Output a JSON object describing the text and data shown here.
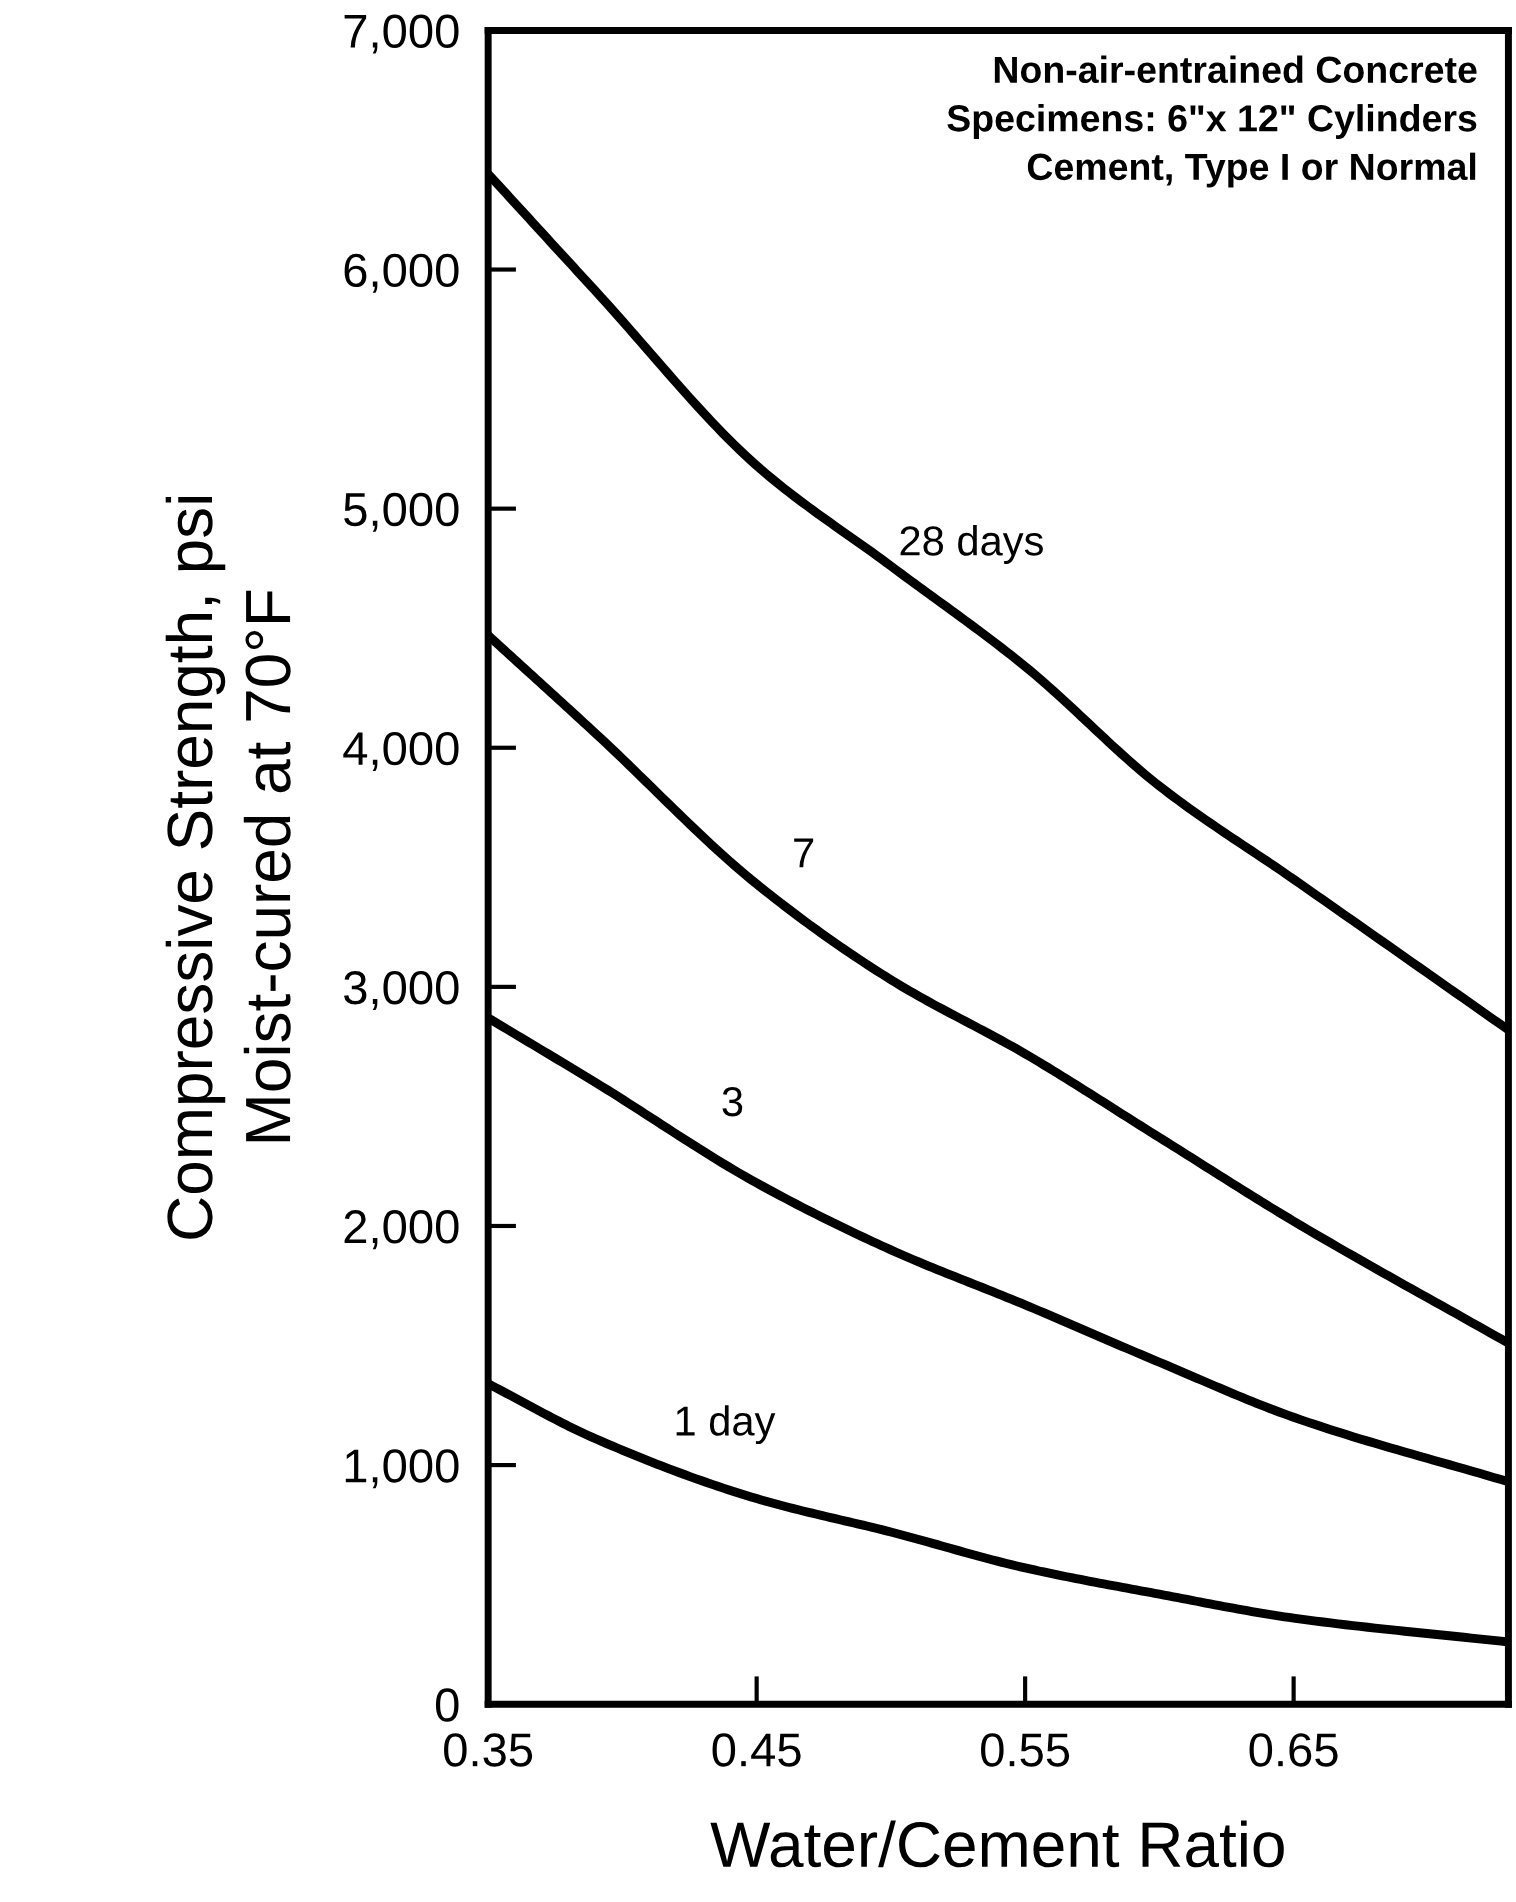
{
  "chart_data": {
    "type": "line",
    "xlabel": "Water/Cement Ratio",
    "ylabel": "Compressive Strength, psi\nMoist-cured at 70°F",
    "x": [
      0.35,
      0.39,
      0.45,
      0.5,
      0.55,
      0.6,
      0.65,
      0.73
    ],
    "series": [
      {
        "name": "28 days",
        "color": "#000000",
        "values": [
          6400,
          5910,
          5180,
          4760,
          4340,
          3840,
          3450,
          2820
        ]
      },
      {
        "name": "7",
        "color": "#000000",
        "values": [
          4470,
          4060,
          3430,
          3030,
          2720,
          2370,
          2020,
          1510
        ]
      },
      {
        "name": "3",
        "color": "#000000",
        "values": [
          2870,
          2600,
          2180,
          1900,
          1670,
          1430,
          1200,
          930
        ]
      },
      {
        "name": "1 day",
        "color": "#000000",
        "values": [
          1340,
          1110,
          860,
          720,
          570,
          460,
          360,
          260
        ]
      }
    ],
    "xlim": [
      0.35,
      0.73
    ],
    "xticks": [
      0.35,
      0.45,
      0.55,
      0.65
    ],
    "ylim": [
      0,
      7000
    ],
    "yticks": [
      0,
      {
        "value": 1000,
        "label": "1,000"
      },
      {
        "value": 2000,
        "label": "2,000"
      },
      {
        "value": 3000,
        "label": "3,000"
      },
      {
        "value": 4000,
        "label": "4,000"
      },
      {
        "value": 5000,
        "label": "5,000"
      },
      {
        "value": 6000,
        "label": "6,000"
      },
      {
        "value": 7000,
        "label": "7,000"
      }
    ],
    "grid": false,
    "legend": false,
    "marker": "none",
    "line_style": "solid",
    "annotations": [
      "Non-air-entrained Concrete\nSpecimens: 6\"x 12\" Cylinders\nCement, Type I or Normal"
    ]
  }
}
